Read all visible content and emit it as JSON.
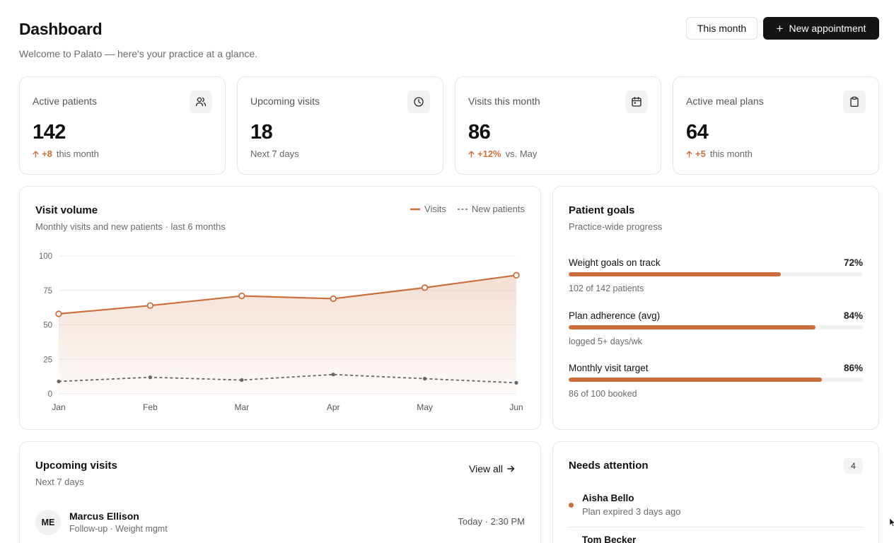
{
  "header": {
    "title": "Dashboard",
    "subtitle": "Welcome to Palato — here's your practice at a glance.",
    "month_button": "This month",
    "new_appointment_button": "New appointment",
    "plus_glyph": "+"
  },
  "stats": [
    {
      "label": "Active patients",
      "value": "142",
      "delta": "+8",
      "delta_note": "this month",
      "icon": "users-icon"
    },
    {
      "label": "Upcoming visits",
      "value": "18",
      "delta": "",
      "delta_note": "Next 7 days",
      "icon": "clock-icon"
    },
    {
      "label": "Visits this month",
      "value": "86",
      "delta": "+12%",
      "delta_note": "vs. May",
      "icon": "calendar-icon"
    },
    {
      "label": "Active meal plans",
      "value": "64",
      "delta": "+5",
      "delta_note": "this month",
      "icon": "clipboard-icon"
    }
  ],
  "visit_volume": {
    "title": "Visit volume",
    "subtitle": "Monthly visits and new patients · last 6 months",
    "legend": {
      "visits": "Visits",
      "new_patients": "New patients"
    }
  },
  "chart_data": {
    "type": "line",
    "x": [
      "Jan",
      "Feb",
      "Mar",
      "Apr",
      "May",
      "Jun"
    ],
    "series": [
      {
        "name": "Visits",
        "values": [
          58,
          64,
          71,
          69,
          77,
          86
        ]
      },
      {
        "name": "New patients",
        "values": [
          9,
          12,
          10,
          14,
          11,
          8
        ]
      }
    ],
    "ylim": [
      0,
      100
    ],
    "yticks": [
      0,
      25,
      50,
      75,
      100
    ],
    "grid": true,
    "legend_position": "top-right",
    "colors": {
      "visits": "#cc6e3b",
      "new_patients": "#666666"
    }
  },
  "patient_goals": {
    "title": "Patient goals",
    "subtitle": "Practice-wide progress",
    "items": [
      {
        "label": "Weight goals on track",
        "pct_label": "72%",
        "value": 0.72,
        "note": "102 of 142 patients"
      },
      {
        "label": "Plan adherence (avg)",
        "pct_label": "84%",
        "value": 0.84,
        "note": "logged 5+ days/wk"
      },
      {
        "label": "Monthly visit target",
        "pct_label": "86%",
        "value": 0.86,
        "note": "86 of 100 booked"
      }
    ]
  },
  "upcoming_visits": {
    "title": "Upcoming visits",
    "subtitle": "Next 7 days",
    "view_all": "View all",
    "rows": [
      {
        "initials": "ME",
        "name": "Marcus Ellison",
        "meta": "Follow-up · Weight mgmt",
        "time": "Today · 2:30 PM"
      }
    ]
  },
  "needs_attention": {
    "title": "Needs attention",
    "count": "4",
    "items": [
      {
        "name": "Aisha Bello",
        "note": "Plan expired 3 days ago"
      },
      {
        "name": "Tom Becker",
        "note": ""
      }
    ]
  },
  "colors": {
    "accent": "#cc6e3b",
    "primary_button": "#141414",
    "border": "#e6e6e6"
  }
}
